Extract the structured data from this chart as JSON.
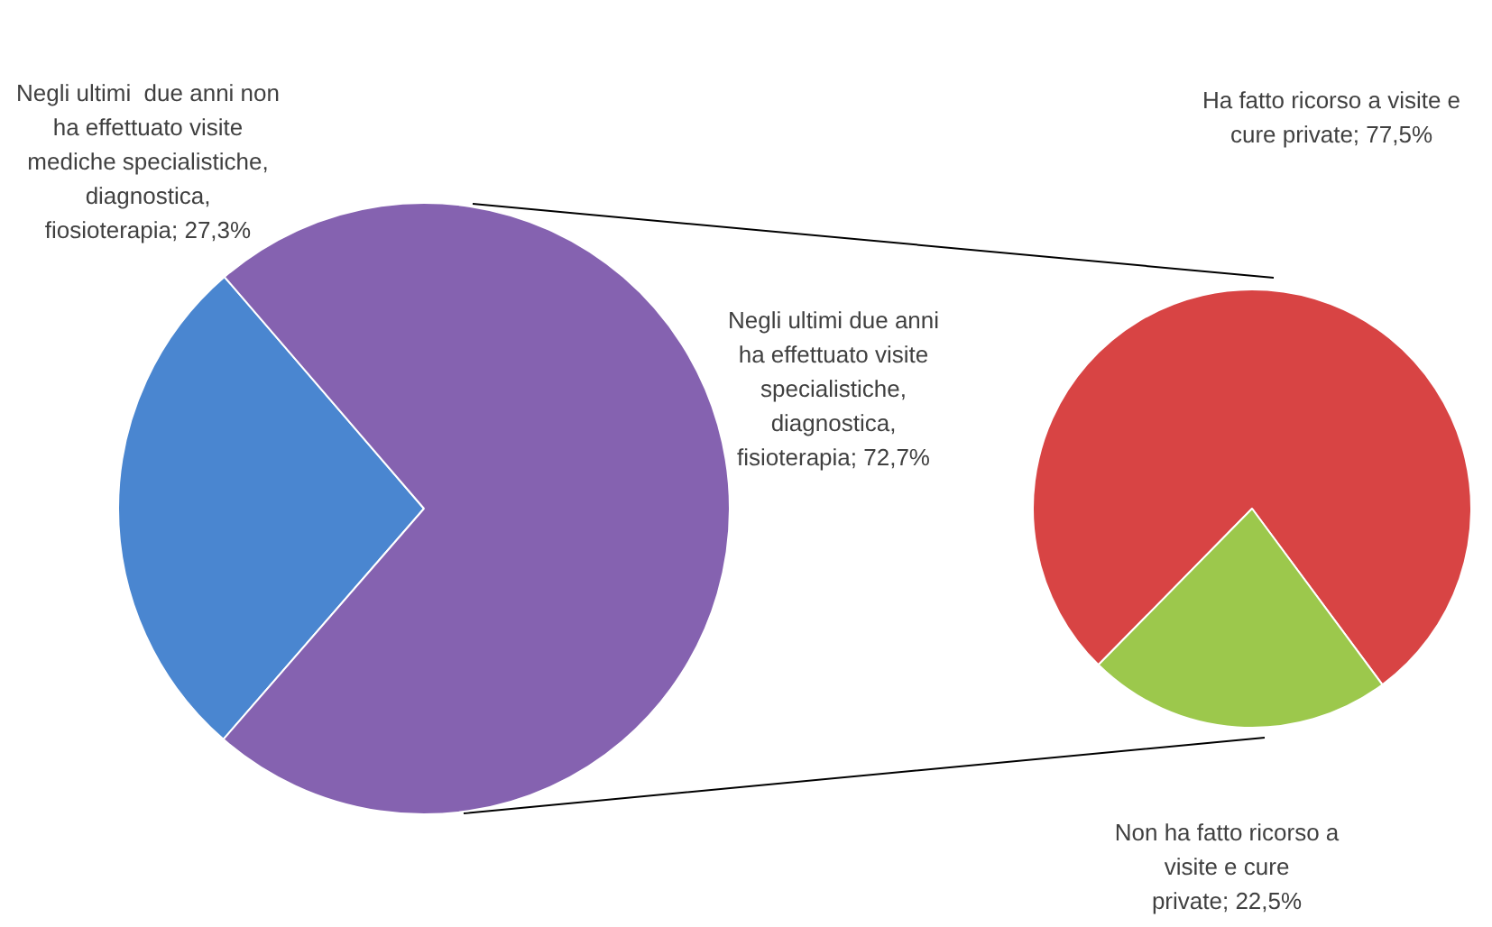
{
  "chart_data": [
    {
      "type": "pie",
      "categories": [
        "Negli ultimi  due anni non ha effettuato visite mediche specialistiche, diagnostica, fiosioterapia",
        "Negli ultimi due anni ha effettuato visite specialistiche, diagnostica, fisioterapia"
      ],
      "values": [
        27.3,
        72.7
      ],
      "value_labels": [
        "27,3%",
        "72,7%"
      ],
      "colors": [
        "#4a86d0",
        "#8562b0"
      ],
      "legend": false
    },
    {
      "type": "pie",
      "categories": [
        "Ha fatto ricorso a visite e cure private",
        "Non ha fatto ricorso a visite e cure private"
      ],
      "values": [
        77.5,
        22.5
      ],
      "value_labels": [
        "77,5%",
        "22,5%"
      ],
      "colors": [
        "#d84444",
        "#9cc84c"
      ],
      "legend": false
    }
  ]
}
